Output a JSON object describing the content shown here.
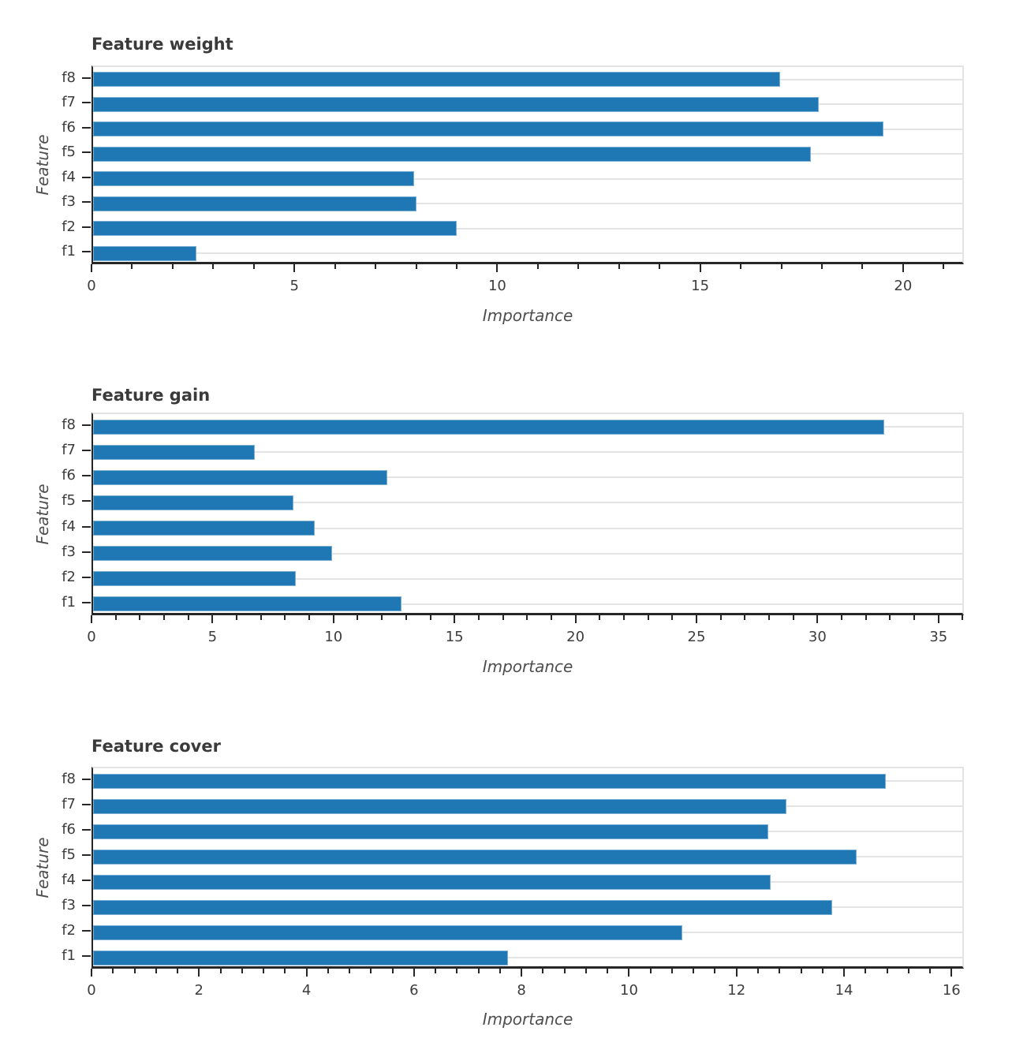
{
  "figure": {
    "background": "#ffffff",
    "accent_color": "#1f77b4"
  },
  "chart_data": [
    {
      "type": "bar",
      "orientation": "horizontal",
      "title": "Feature weight",
      "xlabel": "Importance",
      "ylabel": "Feature",
      "categories_top_to_bottom": [
        "f8",
        "f7",
        "f6",
        "f5",
        "f4",
        "f3",
        "f2",
        "f1"
      ],
      "values": [
        17.0,
        17.95,
        19.55,
        17.75,
        7.95,
        8.0,
        9.0,
        2.55
      ],
      "xlim": [
        0,
        21.5
      ],
      "xticks": [
        0,
        5,
        10,
        15,
        20
      ],
      "minor_tick_step": 1,
      "grid": "horizontal-at-each-category",
      "bar_color": "#1f77b4",
      "bar_edge_color": "#7cb0d4",
      "legend": "none"
    },
    {
      "type": "bar",
      "orientation": "horizontal",
      "title": "Feature gain",
      "xlabel": "Importance",
      "ylabel": "Feature",
      "categories_top_to_bottom": [
        "f8",
        "f7",
        "f6",
        "f5",
        "f4",
        "f3",
        "f2",
        "f1"
      ],
      "values": [
        32.8,
        6.7,
        12.2,
        8.3,
        9.2,
        9.9,
        8.4,
        12.8
      ],
      "xlim": [
        0,
        36.05
      ],
      "xticks": [
        0,
        5,
        10,
        15,
        20,
        25,
        30,
        35
      ],
      "minor_tick_step": 1,
      "grid": "horizontal-at-each-category",
      "bar_color": "#1f77b4",
      "bar_edge_color": "#7cb0d4",
      "legend": "none"
    },
    {
      "type": "bar",
      "orientation": "horizontal",
      "title": "Feature cover",
      "xlabel": "Importance",
      "ylabel": "Feature",
      "categories_top_to_bottom": [
        "f8",
        "f7",
        "f6",
        "f5",
        "f4",
        "f3",
        "f2",
        "f1"
      ],
      "values": [
        14.8,
        12.95,
        12.6,
        14.25,
        12.65,
        13.8,
        11.0,
        7.75
      ],
      "xlim": [
        0,
        16.23
      ],
      "xticks": [
        0,
        2,
        4,
        6,
        8,
        10,
        12,
        14,
        16
      ],
      "minor_tick_step": 0.4,
      "grid": "horizontal-at-each-category",
      "bar_color": "#1f77b4",
      "bar_edge_color": "#7cb0d4",
      "legend": "none"
    }
  ]
}
